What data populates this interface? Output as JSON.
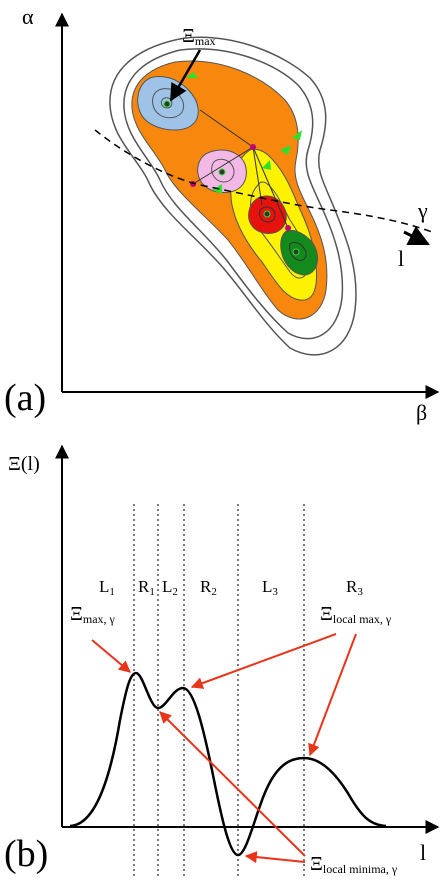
{
  "panel_a": {
    "label": "(a)",
    "y_axis_label": "α",
    "x_axis_label": "β",
    "peak_label": "Ξ",
    "peak_sub": "max",
    "path_label": "γ",
    "path_param": "l",
    "colors": {
      "outer_lines": "#555555",
      "orange": "#f7870d",
      "yellow": "#fff200",
      "blue": "#9ec3e6",
      "pink": "#f2b8e6",
      "red": "#e8120c",
      "green": "#128a1c",
      "arrow_green": "#2ee02e",
      "saddle": "#c2007a"
    }
  },
  "panel_b": {
    "label": "(b)",
    "y_axis_label": "Ξ(l)",
    "x_axis_label": "l",
    "regions": [
      {
        "base": "L",
        "sub": "1"
      },
      {
        "base": "R",
        "sub": "1"
      },
      {
        "base": "L",
        "sub": "2"
      },
      {
        "base": "R",
        "sub": "2"
      },
      {
        "base": "L",
        "sub": "3"
      },
      {
        "base": "R",
        "sub": "3"
      }
    ],
    "annot_max": {
      "base": "Ξ",
      "sub": "max, γ"
    },
    "annot_local_max": {
      "base": "Ξ",
      "sub": "local max, γ"
    },
    "annot_local_min": {
      "base": "Ξ",
      "sub": "local minima, γ"
    },
    "arrow_color": "#e8351a"
  }
}
